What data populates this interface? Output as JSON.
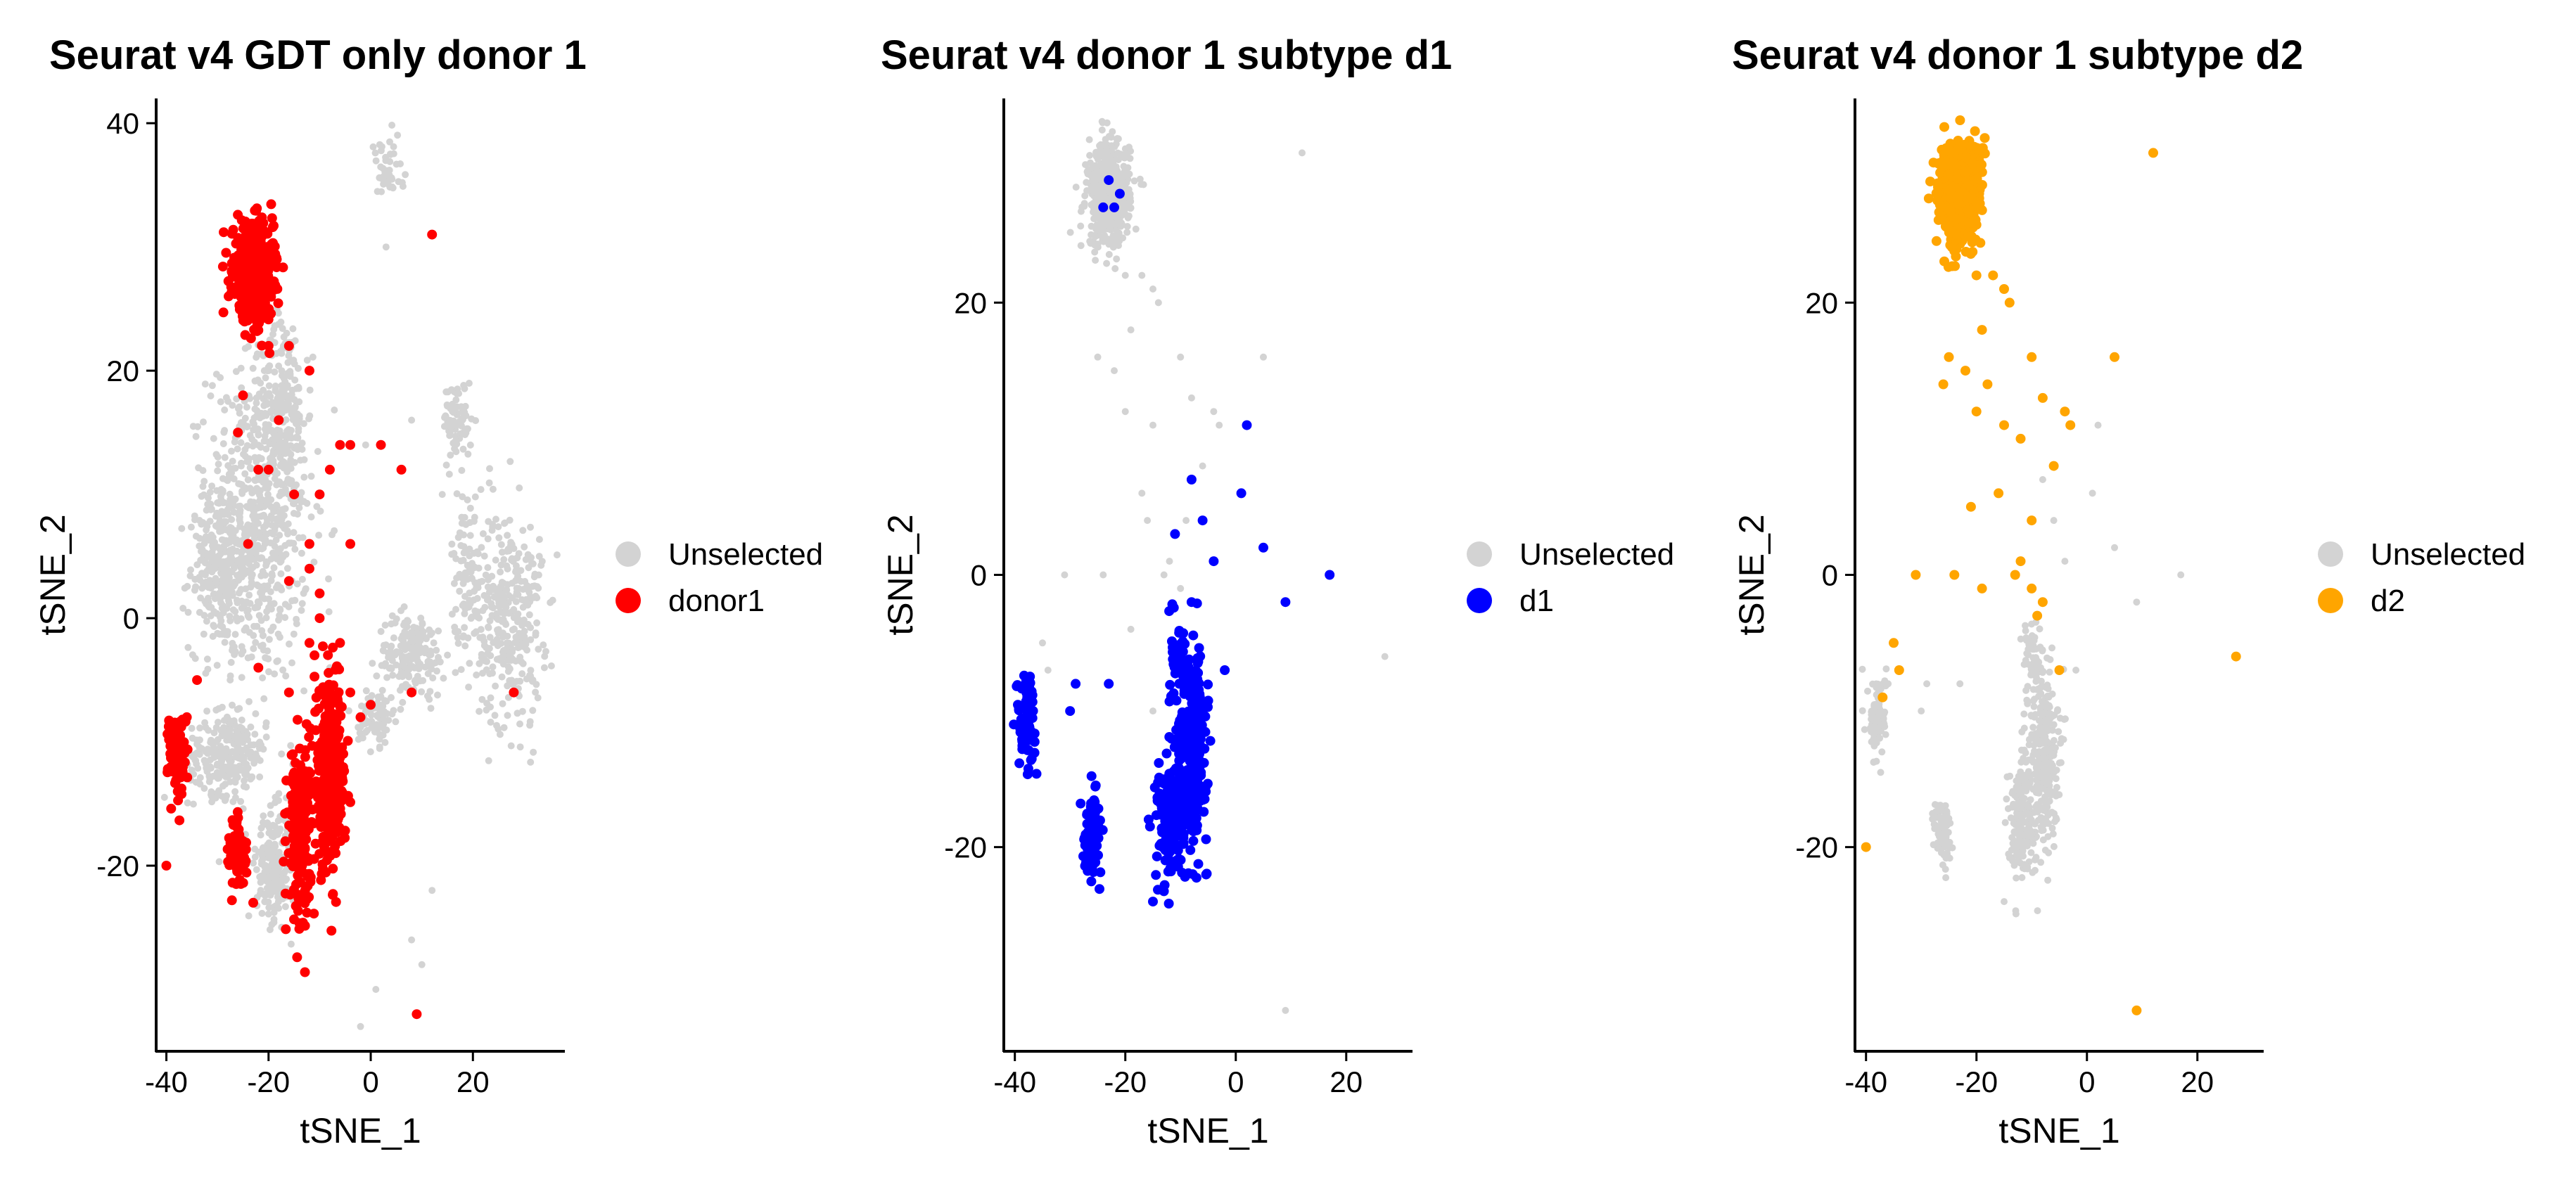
{
  "chart_data": [
    {
      "type": "scatter",
      "title": "Seurat v4 GDT only donor 1",
      "xlabel": "tSNE_1",
      "ylabel": "tSNE_2",
      "xlim": [
        -42,
        38
      ],
      "ylim": [
        -35,
        42
      ],
      "xticks": [
        -40,
        -20,
        0,
        20
      ],
      "yticks": [
        -20,
        0,
        20,
        40
      ],
      "xtick_labels": [
        "-40",
        "-20",
        "0",
        "20"
      ],
      "ytick_labels": [
        "-20",
        "0",
        "20",
        "40"
      ],
      "grid": false,
      "legend": {
        "position": "right",
        "entries": [
          {
            "label": "Unselected",
            "color": "#d3d3d3"
          },
          {
            "label": "donor1",
            "color": "#ff0000"
          }
        ]
      },
      "series": [
        {
          "name": "Unselected",
          "color": "#d3d3d3",
          "clusters": [
            {
              "cx": -22,
              "cy": 8,
              "rx": 9,
              "ry": 12,
              "n": 700
            },
            {
              "cx": -30,
              "cy": 4,
              "rx": 5,
              "ry": 6,
              "n": 220
            },
            {
              "cx": -17,
              "cy": 17,
              "rx": 4,
              "ry": 7,
              "n": 160
            },
            {
              "cx": -28,
              "cy": -11,
              "rx": 7,
              "ry": 3,
              "n": 260
            },
            {
              "cx": -19,
              "cy": -20,
              "rx": 3,
              "ry": 4,
              "n": 230
            },
            {
              "cx": 17,
              "cy": 16,
              "rx": 2.5,
              "ry": 3,
              "n": 80
            },
            {
              "cx": 27,
              "cy": 0,
              "rx": 6,
              "ry": 8,
              "n": 320
            },
            {
              "cx": 19,
              "cy": 4,
              "rx": 3,
              "ry": 6,
              "n": 90
            },
            {
              "cx": 8,
              "cy": -3,
              "rx": 6,
              "ry": 3,
              "n": 180
            },
            {
              "cx": 1,
              "cy": -8,
              "rx": 3,
              "ry": 2,
              "n": 90
            },
            {
              "cx": 3,
              "cy": 36,
              "rx": 3,
              "ry": 2.5,
              "n": 45
            }
          ],
          "points": [
            [
              10,
              -28
            ],
            [
              1,
              -30
            ],
            [
              8,
              -26
            ],
            [
              -2,
              -33
            ],
            [
              12,
              -22
            ],
            [
              -1,
              14
            ],
            [
              3,
              30
            ],
            [
              8,
              16
            ],
            [
              14,
              10
            ],
            [
              -12,
              6
            ],
            [
              -8,
              -4
            ],
            [
              34,
              -4
            ],
            [
              33,
              5
            ]
          ]
        },
        {
          "name": "donor1",
          "color": "#ff0000",
          "clusters": [
            {
              "cx": -23,
              "cy": 28,
              "rx": 3.5,
              "ry": 3.5,
              "n": 550
            },
            {
              "cx": -8,
              "cy": -13,
              "rx": 2.8,
              "ry": 6.5,
              "n": 340
            },
            {
              "cx": -14,
              "cy": -17,
              "rx": 2,
              "ry": 6,
              "n": 180
            },
            {
              "cx": -38,
              "cy": -11,
              "rx": 1.5,
              "ry": 3,
              "n": 110
            },
            {
              "cx": -26,
              "cy": -19,
              "rx": 1.5,
              "ry": 2.5,
              "n": 80
            }
          ],
          "points": [
            [
              -25,
              18
            ],
            [
              -18,
              16
            ],
            [
              -20,
              12
            ],
            [
              -26,
              15
            ],
            [
              -20,
              22
            ],
            [
              -16,
              22
            ],
            [
              -12,
              20
            ],
            [
              -22,
              12
            ],
            [
              -15,
              10
            ],
            [
              -12,
              6
            ],
            [
              -10,
              10
            ],
            [
              -8,
              12
            ],
            [
              -6,
              14
            ],
            [
              -4,
              14
            ],
            [
              2,
              14
            ],
            [
              6,
              12
            ],
            [
              -24,
              6
            ],
            [
              -16,
              3
            ],
            [
              -12,
              4
            ],
            [
              -10,
              0
            ],
            [
              -6,
              -2
            ],
            [
              -4,
              -6
            ],
            [
              -8,
              -6
            ],
            [
              -12,
              -2
            ],
            [
              -16,
              -6
            ],
            [
              -22,
              -4
            ],
            [
              -34,
              -5
            ],
            [
              -36,
              -8
            ],
            [
              -40,
              -20
            ],
            [
              -23,
              -23
            ],
            [
              -6,
              -12
            ],
            [
              -2,
              -8
            ],
            [
              0,
              -7
            ],
            [
              -4,
              6
            ],
            [
              8,
              -6
            ],
            [
              12,
              31
            ],
            [
              9,
              -32
            ],
            [
              28,
              -6
            ],
            [
              -11,
              -3
            ],
            [
              -10,
              2
            ]
          ]
        }
      ]
    },
    {
      "type": "scatter",
      "title": "Seurat v4 donor 1 subtype d1",
      "xlabel": "tSNE_1",
      "ylabel": "tSNE_2",
      "xlim": [
        -42,
        32
      ],
      "ylim": [
        -35,
        35
      ],
      "xticks": [
        -40,
        -20,
        0,
        20
      ],
      "yticks": [
        -20,
        0,
        20
      ],
      "xtick_labels": [
        "-40",
        "-20",
        "0",
        "20"
      ],
      "ytick_labels": [
        "-20",
        "0",
        "20"
      ],
      "grid": false,
      "legend": {
        "position": "right",
        "entries": [
          {
            "label": "Unselected",
            "color": "#d3d3d3"
          },
          {
            "label": "d1",
            "color": "#0000ff"
          }
        ]
      },
      "series": [
        {
          "name": "Unselected",
          "color": "#d3d3d3",
          "clusters": [
            {
              "cx": -23,
              "cy": 28,
              "rx": 3.5,
              "ry": 3.5,
              "n": 520
            }
          ],
          "points": [
            [
              -20,
              22
            ],
            [
              -17,
              22
            ],
            [
              -15,
              21
            ],
            [
              -14,
              20
            ],
            [
              -19,
              18
            ],
            [
              -22,
              15
            ],
            [
              -25,
              16
            ],
            [
              -20,
              12
            ],
            [
              -15,
              11
            ],
            [
              -10,
              16
            ],
            [
              -8,
              13
            ],
            [
              -4,
              12
            ],
            [
              -3,
              11
            ],
            [
              5,
              16
            ],
            [
              -6,
              8
            ],
            [
              -12,
              1
            ],
            [
              -10,
              -1
            ],
            [
              -13,
              0
            ],
            [
              -8,
              -2
            ],
            [
              -31,
              0
            ],
            [
              -35,
              -5
            ],
            [
              -37,
              -9
            ],
            [
              -34,
              -7
            ],
            [
              9,
              -32
            ],
            [
              12,
              31
            ],
            [
              27,
              -6
            ],
            [
              17,
              0
            ],
            [
              -17,
              6
            ],
            [
              -19,
              -4
            ],
            [
              -16,
              4
            ],
            [
              -15,
              -10
            ],
            [
              -24,
              0
            ],
            [
              -9,
              4
            ]
          ]
        },
        {
          "name": "d1",
          "color": "#0000ff",
          "clusters": [
            {
              "cx": -38,
              "cy": -10.5,
              "rx": 1.5,
              "ry": 3,
              "n": 90
            },
            {
              "cx": -26,
              "cy": -19,
              "rx": 1.5,
              "ry": 2.5,
              "n": 80
            },
            {
              "cx": -8,
              "cy": -13,
              "rx": 2.5,
              "ry": 6,
              "n": 300
            },
            {
              "cx": -12,
              "cy": -18,
              "rx": 2.2,
              "ry": 4,
              "n": 160
            },
            {
              "cx": -10,
              "cy": -6,
              "rx": 1.5,
              "ry": 3,
              "n": 50
            }
          ],
          "points": [
            [
              -23,
              29
            ],
            [
              -22,
              27
            ],
            [
              -24,
              27
            ],
            [
              -21,
              28
            ],
            [
              2,
              11
            ],
            [
              -8,
              7
            ],
            [
              -6,
              4
            ],
            [
              -11,
              3
            ],
            [
              -4,
              1
            ],
            [
              1,
              6
            ],
            [
              5,
              2
            ],
            [
              17,
              0
            ],
            [
              9,
              -2
            ],
            [
              -2,
              -7
            ],
            [
              -23,
              -8
            ],
            [
              -29,
              -8
            ],
            [
              -15,
              -24
            ],
            [
              -30,
              -10
            ],
            [
              -8,
              -2
            ]
          ]
        }
      ]
    },
    {
      "type": "scatter",
      "title": "Seurat v4 donor 1 subtype d2",
      "xlabel": "tSNE_1",
      "ylabel": "tSNE_2",
      "xlim": [
        -42,
        32
      ],
      "ylim": [
        -35,
        35
      ],
      "xticks": [
        -40,
        -20,
        0,
        20
      ],
      "yticks": [
        -20,
        0,
        20
      ],
      "xtick_labels": [
        "-40",
        "-20",
        "0",
        "20"
      ],
      "ytick_labels": [
        "-20",
        "0",
        "20"
      ],
      "grid": false,
      "legend": {
        "position": "right",
        "entries": [
          {
            "label": "Unselected",
            "color": "#d3d3d3"
          },
          {
            "label": "d2",
            "color": "#ffa500"
          }
        ]
      },
      "series": [
        {
          "name": "Unselected",
          "color": "#d3d3d3",
          "clusters": [
            {
              "cx": -38,
              "cy": -10.5,
              "rx": 1.5,
              "ry": 3,
              "n": 90
            },
            {
              "cx": -26,
              "cy": -19,
              "rx": 1.5,
              "ry": 2.5,
              "n": 80
            },
            {
              "cx": -8,
              "cy": -13,
              "rx": 2.5,
              "ry": 6,
              "n": 300
            },
            {
              "cx": -12,
              "cy": -18,
              "rx": 2.2,
              "ry": 4,
              "n": 160
            },
            {
              "cx": -10,
              "cy": -6,
              "rx": 1.5,
              "ry": 3,
              "n": 50
            }
          ],
          "points": [
            [
              2,
              11
            ],
            [
              -8,
              7
            ],
            [
              -6,
              4
            ],
            [
              -4,
              1
            ],
            [
              1,
              6
            ],
            [
              5,
              2
            ],
            [
              17,
              0
            ],
            [
              9,
              -2
            ],
            [
              -2,
              -7
            ],
            [
              -23,
              -8
            ],
            [
              -29,
              -8
            ],
            [
              -15,
              -24
            ],
            [
              -30,
              -10
            ],
            [
              -36,
              -8
            ]
          ]
        },
        {
          "name": "d2",
          "color": "#ffa500",
          "clusters": [
            {
              "cx": -23,
              "cy": 28,
              "rx": 3.5,
              "ry": 3.5,
              "n": 560
            }
          ],
          "points": [
            [
              -20,
              22
            ],
            [
              -17,
              22
            ],
            [
              -15,
              21
            ],
            [
              -14,
              20
            ],
            [
              -19,
              18
            ],
            [
              -22,
              15
            ],
            [
              -25,
              16
            ],
            [
              -20,
              12
            ],
            [
              -15,
              11
            ],
            [
              -10,
              16
            ],
            [
              -8,
              13
            ],
            [
              -4,
              12
            ],
            [
              -3,
              11
            ],
            [
              5,
              16
            ],
            [
              -6,
              8
            ],
            [
              -12,
              1
            ],
            [
              -10,
              -1
            ],
            [
              -13,
              0
            ],
            [
              -8,
              -2
            ],
            [
              -31,
              0
            ],
            [
              -35,
              -5
            ],
            [
              -37,
              -9
            ],
            [
              -34,
              -7
            ],
            [
              9,
              -32
            ],
            [
              12,
              31
            ],
            [
              27,
              -6
            ],
            [
              -16,
              6
            ],
            [
              -19,
              -1
            ],
            [
              -10,
              4
            ],
            [
              -9,
              -3
            ],
            [
              -24,
              0
            ],
            [
              -40,
              -20
            ],
            [
              -5,
              -7
            ],
            [
              -18,
              14
            ],
            [
              -12,
              10
            ],
            [
              -26,
              14
            ],
            [
              -21,
              5
            ]
          ]
        }
      ]
    }
  ]
}
